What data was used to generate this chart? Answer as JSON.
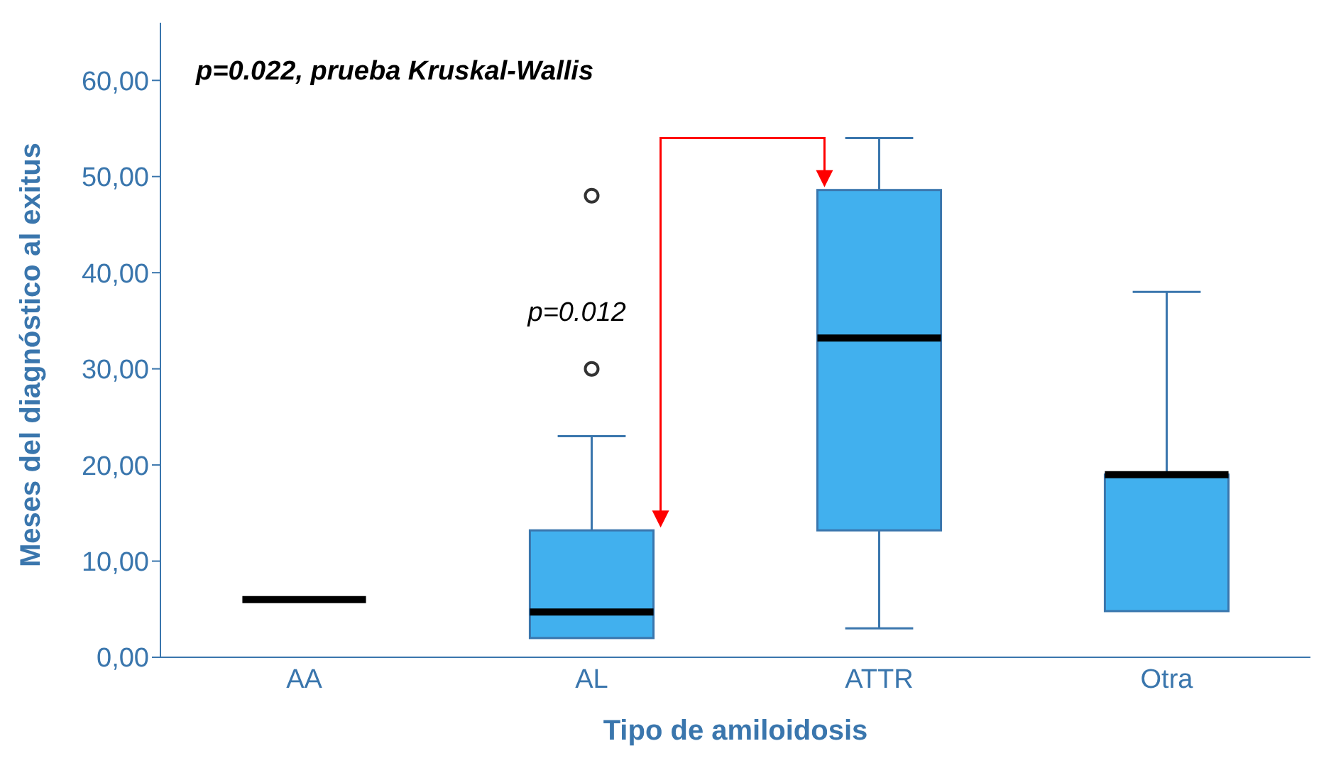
{
  "chart_data": {
    "type": "box",
    "xlabel": "Tipo de amiloidosis",
    "ylabel": "Meses del diagnóstico al exitus",
    "categories": [
      "AA",
      "AL",
      "ATTR",
      "Otra"
    ],
    "boxes": [
      {
        "low": 6,
        "q1": 6,
        "median": 6,
        "q3": 6,
        "high": 6
      },
      {
        "low": 2,
        "q1": 2,
        "median": 4.7,
        "q3": 13.2,
        "high": 23,
        "outliers": [
          30,
          48
        ]
      },
      {
        "low": 3,
        "q1": 13.2,
        "median": 33.2,
        "q3": 48.6,
        "high": 54
      },
      {
        "low": 4.8,
        "q1": 4.8,
        "median": 19,
        "q3": 19,
        "high": 38
      }
    ],
    "colors": [
      "#000000",
      "#41b0ee",
      "#41b0ee",
      "#41b0ee"
    ],
    "ylim": [
      0,
      66
    ],
    "yticks": [
      {
        "value": 0,
        "label": "0,00"
      },
      {
        "value": 10,
        "label": "10,00"
      },
      {
        "value": 20,
        "label": "20,00"
      },
      {
        "value": 30,
        "label": "30,00"
      },
      {
        "value": 40,
        "label": "40,00"
      },
      {
        "value": 50,
        "label": "50,00"
      },
      {
        "value": 60,
        "label": "60,00"
      }
    ],
    "grid": false,
    "legend": false,
    "annotations": [
      "p=0.022, prueba Kruskal-Wallis",
      "p=0.012"
    ]
  }
}
